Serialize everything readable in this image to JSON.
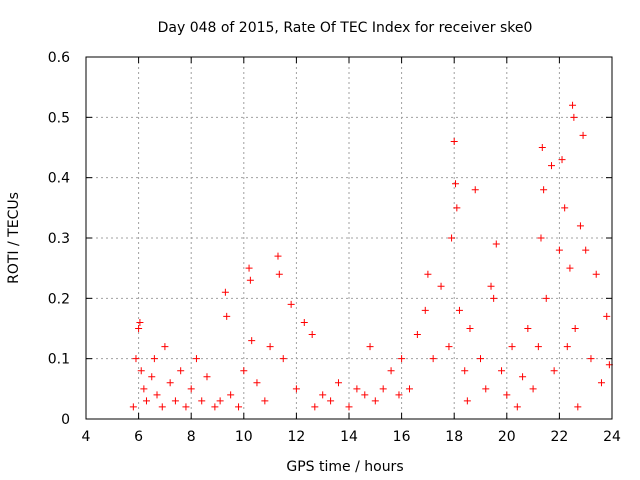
{
  "chart_data": {
    "type": "scatter",
    "title": "Day 048 of 2015, Rate Of TEC Index for receiver ske0",
    "xlabel": "GPS time / hours",
    "ylabel": "ROTI / TECUs",
    "xlim": [
      4,
      24
    ],
    "ylim": [
      0,
      0.6
    ],
    "x_ticks": [
      "4",
      "6",
      "8",
      "10",
      "12",
      "14",
      "16",
      "18",
      "20",
      "22",
      "24"
    ],
    "y_ticks": [
      "0",
      "0.1",
      "0.2",
      "0.3",
      "0.4",
      "0.5",
      "0.6"
    ],
    "grid": true,
    "marker": "+",
    "series": [
      {
        "name": "ROTI",
        "color": "#ff0000",
        "x": [
          5.8,
          5.9,
          6.0,
          6.05,
          6.1,
          6.2,
          6.3,
          6.5,
          6.6,
          6.7,
          6.9,
          7.0,
          7.2,
          7.4,
          7.6,
          7.8,
          8.0,
          8.2,
          8.4,
          8.6,
          8.9,
          9.1,
          9.3,
          9.35,
          9.5,
          9.8,
          10.0,
          10.2,
          10.25,
          10.3,
          10.5,
          10.8,
          11.0,
          11.3,
          11.35,
          11.5,
          11.8,
          12.0,
          12.3,
          12.6,
          12.7,
          13.0,
          13.3,
          13.6,
          14.0,
          14.3,
          14.6,
          14.8,
          15.0,
          15.3,
          15.6,
          15.9,
          16.0,
          16.3,
          16.6,
          16.9,
          17.0,
          17.2,
          17.5,
          17.8,
          17.9,
          18.0,
          18.05,
          18.1,
          18.2,
          18.4,
          18.5,
          18.6,
          18.8,
          19.0,
          19.2,
          19.4,
          19.5,
          19.6,
          19.8,
          20.0,
          20.2,
          20.4,
          20.6,
          20.8,
          21.0,
          21.2,
          21.3,
          21.35,
          21.4,
          21.5,
          21.7,
          21.8,
          22.0,
          22.1,
          22.2,
          22.3,
          22.4,
          22.5,
          22.55,
          22.6,
          22.7,
          22.8,
          22.9,
          23.0,
          23.2,
          23.4,
          23.6,
          23.8,
          23.9
        ],
        "y": [
          0.02,
          0.1,
          0.15,
          0.16,
          0.08,
          0.05,
          0.03,
          0.07,
          0.1,
          0.04,
          0.02,
          0.12,
          0.06,
          0.03,
          0.08,
          0.02,
          0.05,
          0.1,
          0.03,
          0.07,
          0.02,
          0.03,
          0.21,
          0.17,
          0.04,
          0.02,
          0.08,
          0.25,
          0.23,
          0.13,
          0.06,
          0.03,
          0.12,
          0.27,
          0.24,
          0.1,
          0.19,
          0.05,
          0.16,
          0.14,
          0.02,
          0.04,
          0.03,
          0.06,
          0.02,
          0.05,
          0.04,
          0.12,
          0.03,
          0.05,
          0.08,
          0.04,
          0.1,
          0.05,
          0.14,
          0.18,
          0.24,
          0.1,
          0.22,
          0.12,
          0.3,
          0.46,
          0.39,
          0.35,
          0.18,
          0.08,
          0.03,
          0.15,
          0.38,
          0.1,
          0.05,
          0.22,
          0.2,
          0.29,
          0.08,
          0.04,
          0.12,
          0.02,
          0.07,
          0.15,
          0.05,
          0.12,
          0.3,
          0.45,
          0.38,
          0.2,
          0.42,
          0.08,
          0.28,
          0.43,
          0.35,
          0.12,
          0.25,
          0.52,
          0.5,
          0.15,
          0.02,
          0.32,
          0.47,
          0.28,
          0.1,
          0.24,
          0.06,
          0.17,
          0.09
        ]
      }
    ]
  }
}
